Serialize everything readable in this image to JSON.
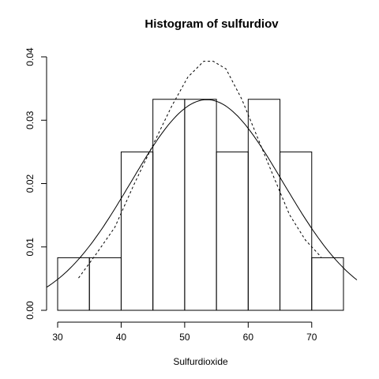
{
  "chart_data": {
    "type": "bar",
    "title": "Histogram of sulfurdiov",
    "xlabel": "Sulfurdioxide",
    "ylabel": "",
    "xlim": [
      30,
      75
    ],
    "ylim": [
      0,
      0.04
    ],
    "x_ticks": [
      30,
      40,
      50,
      60,
      70
    ],
    "y_ticks": [
      0,
      0.01,
      0.02,
      0.03,
      0.04
    ],
    "x_tick_labels": [
      "30",
      "40",
      "50",
      "60",
      "70"
    ],
    "y_tick_labels": [
      "0.00",
      "0.01",
      "0.02",
      "0.03",
      "0.04"
    ],
    "bins": [
      {
        "start": 30,
        "end": 35,
        "density": 0.0083
      },
      {
        "start": 35,
        "end": 40,
        "density": 0.0083
      },
      {
        "start": 40,
        "end": 45,
        "density": 0.025
      },
      {
        "start": 45,
        "end": 50,
        "density": 0.0333
      },
      {
        "start": 50,
        "end": 55,
        "density": 0.0333
      },
      {
        "start": 55,
        "end": 60,
        "density": 0.025
      },
      {
        "start": 60,
        "end": 65,
        "density": 0.0333
      },
      {
        "start": 65,
        "end": 70,
        "density": 0.025
      },
      {
        "start": 70,
        "end": 75,
        "density": 0.0083
      }
    ],
    "series": [
      {
        "name": "normal-curve",
        "style": "solid",
        "mean": 53.5,
        "sd": 12
      },
      {
        "name": "kernel-density",
        "style": "dashed",
        "x": [
          33.3,
          36,
          39,
          42,
          45,
          48,
          50.5,
          53,
          54.5,
          56.5,
          59,
          61.5,
          64,
          66.5,
          69,
          71.5
        ],
        "y": [
          0.0051,
          0.0088,
          0.0131,
          0.0198,
          0.0261,
          0.0323,
          0.0368,
          0.0393,
          0.0393,
          0.0381,
          0.0333,
          0.0272,
          0.0211,
          0.0151,
          0.0111,
          0.0084
        ]
      }
    ]
  }
}
